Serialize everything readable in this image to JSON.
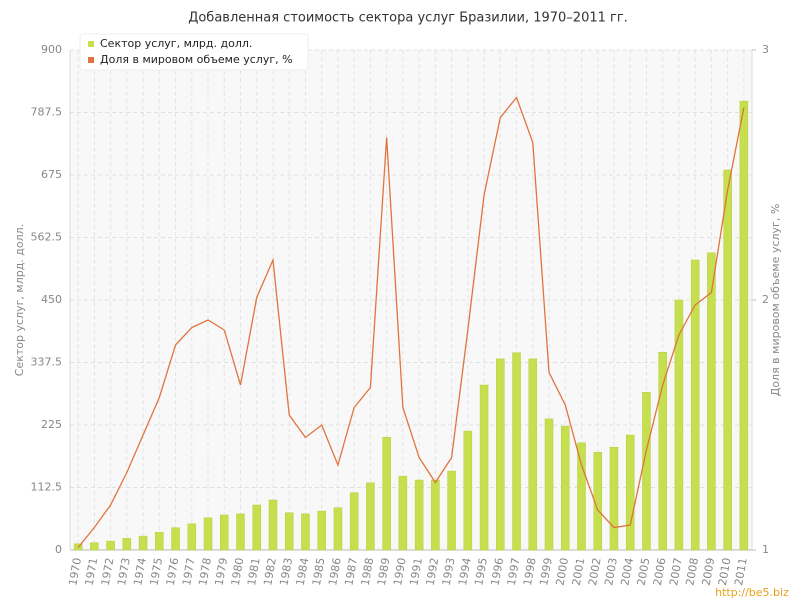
{
  "chart_data": {
    "type": "bar",
    "title": "Добавленная стоимость сектора услуг Бразилии, 1970–2011 гг.",
    "y_label": "Сектор услуг, млрд. долл.",
    "y2_label": "Доля в мировом объеме услуг, %",
    "watermark": "http://be5.biz",
    "categories": [
      "1970",
      "1971",
      "1972",
      "1973",
      "1974",
      "1975",
      "1976",
      "1977",
      "1978",
      "1979",
      "1980",
      "1981",
      "1982",
      "1983",
      "1984",
      "1985",
      "1986",
      "1987",
      "1988",
      "1989",
      "1990",
      "1991",
      "1992",
      "1993",
      "1994",
      "1995",
      "1996",
      "1997",
      "1998",
      "1999",
      "2000",
      "2001",
      "2002",
      "2003",
      "2004",
      "2005",
      "2006",
      "2007",
      "2008",
      "2009",
      "2010",
      "2011"
    ],
    "series": [
      {
        "name": "Сектор услуг, млрд. долл.",
        "type": "bar",
        "color": "#c5df4f",
        "values": [
          11,
          13,
          16,
          21,
          25,
          32,
          40,
          47,
          58,
          63,
          65,
          81,
          90,
          67,
          65,
          70,
          76,
          103,
          121,
          203,
          133,
          126,
          126,
          142,
          214,
          297,
          344,
          355,
          344,
          236,
          223,
          193,
          176,
          185,
          207,
          284,
          356,
          450,
          522,
          535,
          684,
          808
        ]
      },
      {
        "name": "Доля в мировом объеме услуг, %",
        "type": "line",
        "axis": "y2",
        "color": "#e0743f",
        "values": [
          1.01,
          1.09,
          1.18,
          1.31,
          1.46,
          1.61,
          1.82,
          1.89,
          1.92,
          1.88,
          1.66,
          2.01,
          2.16,
          1.54,
          1.45,
          1.5,
          1.34,
          1.57,
          1.65,
          2.65,
          1.57,
          1.37,
          1.27,
          1.37,
          1.88,
          2.42,
          2.73,
          2.81,
          2.63,
          1.71,
          1.58,
          1.34,
          1.16,
          1.09,
          1.1,
          1.4,
          1.66,
          1.86,
          1.98,
          2.03,
          2.44,
          2.77
        ]
      }
    ],
    "ylim": [
      0,
      900
    ],
    "yticks": [
      0,
      112.5,
      225,
      337.5,
      450,
      562.5,
      675,
      787.5,
      900
    ],
    "y2lim": [
      1,
      3
    ],
    "y2ticks": [
      1,
      2,
      3
    ],
    "grid": true,
    "legend": "top-left"
  }
}
